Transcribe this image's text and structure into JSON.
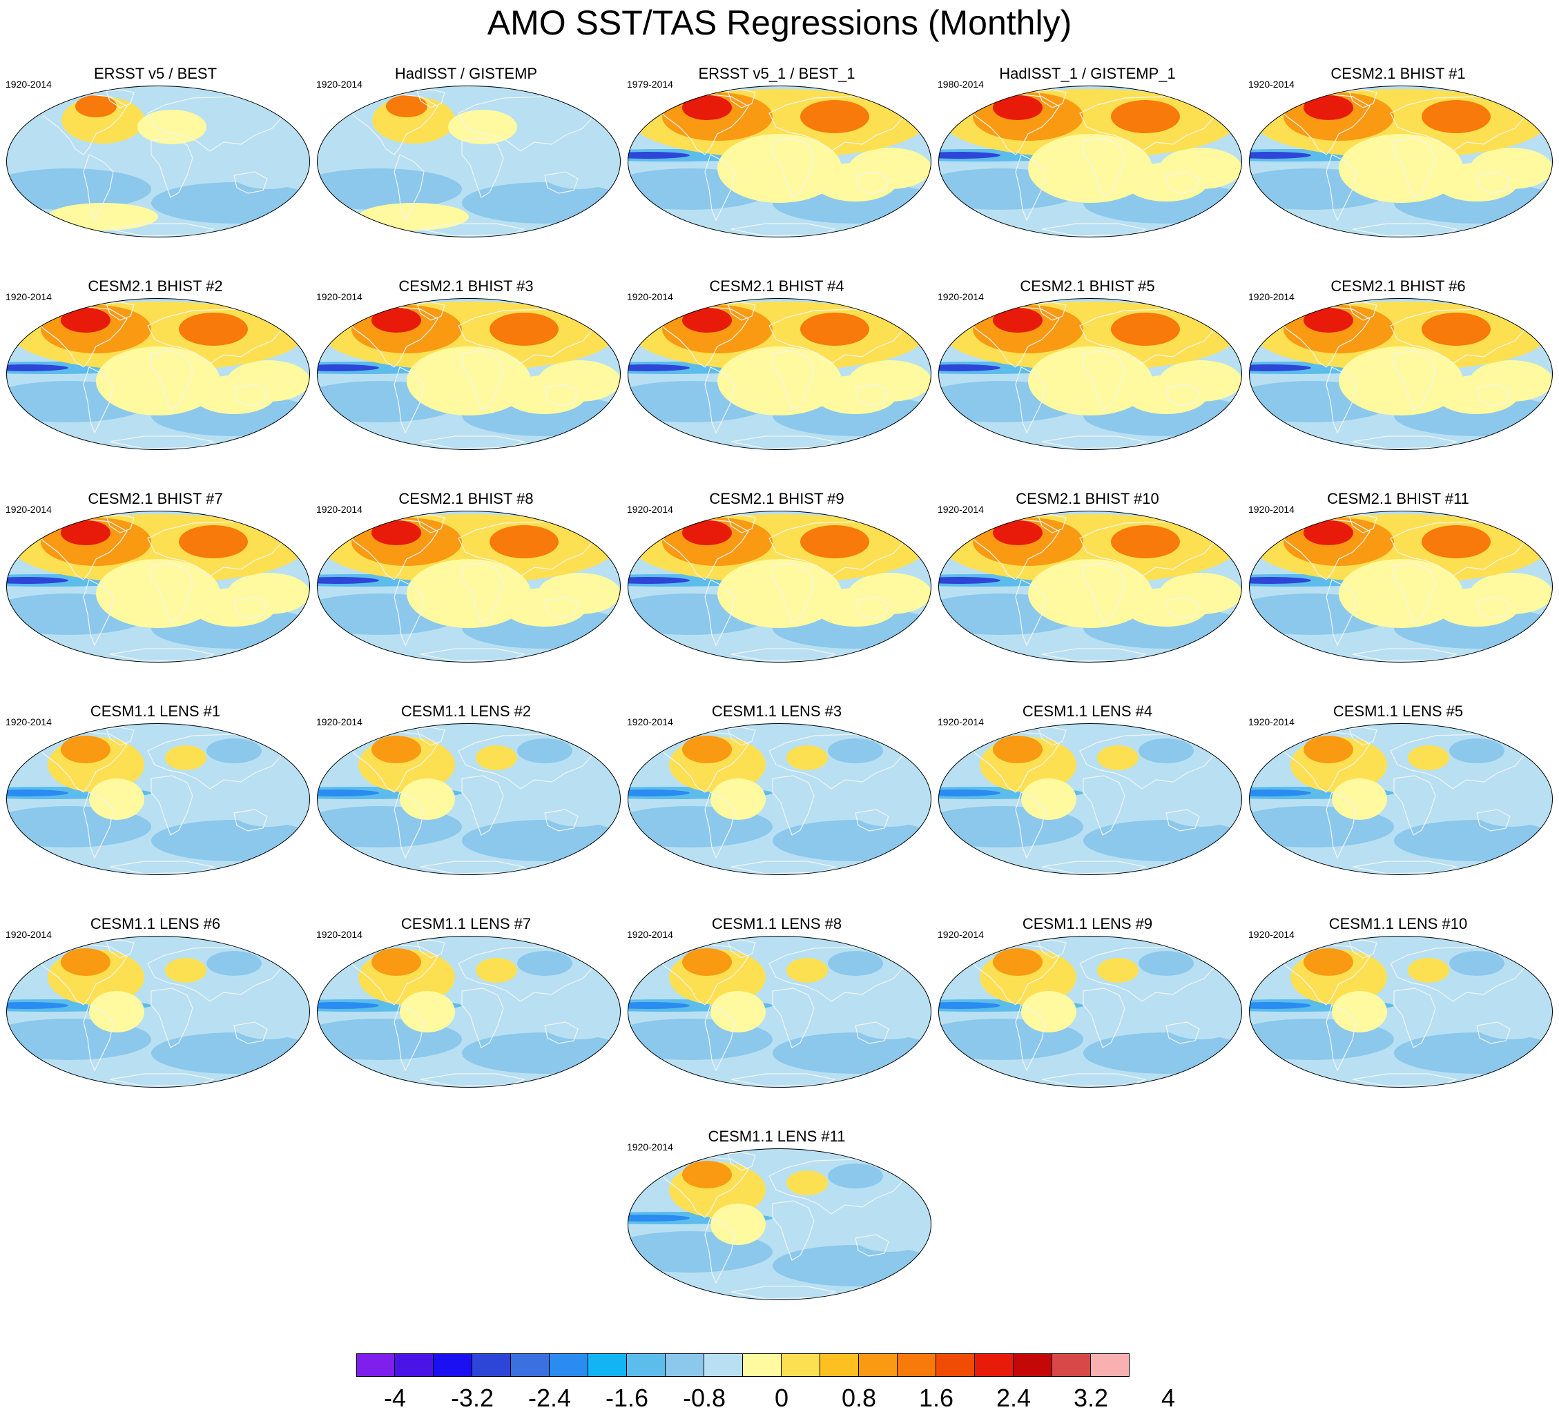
{
  "title": "AMO SST/TAS Regressions (Monthly)",
  "panels": [
    {
      "title": "ERSST v5 / BEST",
      "period": "1920-2014",
      "kind": "obs1"
    },
    {
      "title": "HadISST / GISTEMP",
      "period": "1920-2014",
      "kind": "obs2"
    },
    {
      "title": "ERSST v5_1 / BEST_1",
      "period": "1979-2014",
      "kind": "obs3"
    },
    {
      "title": "HadISST_1 / GISTEMP_1",
      "period": "1980-2014",
      "kind": "obs3"
    },
    {
      "title": "CESM2.1 BHIST #1",
      "period": "1920-2014",
      "kind": "bhist"
    },
    {
      "title": "CESM2.1 BHIST #2",
      "period": "1920-2014",
      "kind": "bhist"
    },
    {
      "title": "CESM2.1 BHIST #3",
      "period": "1920-2014",
      "kind": "bhist"
    },
    {
      "title": "CESM2.1 BHIST #4",
      "period": "1920-2014",
      "kind": "bhist"
    },
    {
      "title": "CESM2.1 BHIST #5",
      "period": "1920-2014",
      "kind": "bhist"
    },
    {
      "title": "CESM2.1 BHIST #6",
      "period": "1920-2014",
      "kind": "bhist"
    },
    {
      "title": "CESM2.1 BHIST #7",
      "period": "1920-2014",
      "kind": "bhist"
    },
    {
      "title": "CESM2.1 BHIST #8",
      "period": "1920-2014",
      "kind": "bhist"
    },
    {
      "title": "CESM2.1 BHIST #9",
      "period": "1920-2014",
      "kind": "bhist"
    },
    {
      "title": "CESM2.1 BHIST #10",
      "period": "1920-2014",
      "kind": "bhist"
    },
    {
      "title": "CESM2.1 BHIST #11",
      "period": "1920-2014",
      "kind": "bhist"
    },
    {
      "title": "CESM1.1 LENS #1",
      "period": "1920-2014",
      "kind": "lens"
    },
    {
      "title": "CESM1.1 LENS #2",
      "period": "1920-2014",
      "kind": "lens"
    },
    {
      "title": "CESM1.1 LENS #3",
      "period": "1920-2014",
      "kind": "lens"
    },
    {
      "title": "CESM1.1 LENS #4",
      "period": "1920-2014",
      "kind": "lens"
    },
    {
      "title": "CESM1.1 LENS #5",
      "period": "1920-2014",
      "kind": "lens"
    },
    {
      "title": "CESM1.1 LENS #6",
      "period": "1920-2014",
      "kind": "lens"
    },
    {
      "title": "CESM1.1 LENS #7",
      "period": "1920-2014",
      "kind": "lens"
    },
    {
      "title": "CESM1.1 LENS #8",
      "period": "1920-2014",
      "kind": "lens"
    },
    {
      "title": "CESM1.1 LENS #9",
      "period": "1920-2014",
      "kind": "lens"
    },
    {
      "title": "CESM1.1 LENS #10",
      "period": "1920-2014",
      "kind": "lens"
    },
    {
      "title": "CESM1.1 LENS #11",
      "period": "1920-2014",
      "kind": "lens"
    }
  ],
  "colorbar": {
    "colors": [
      "#7e1fee",
      "#4a14e8",
      "#1a10f2",
      "#2e46d8",
      "#3a70e0",
      "#2a8cf0",
      "#12b4f4",
      "#5cbcec",
      "#8cc8ec",
      "#b8e0f2",
      "#fffaa0",
      "#fde052",
      "#fcc020",
      "#f99a12",
      "#f77a0a",
      "#f04c06",
      "#e81a0a",
      "#c40808",
      "#d84848",
      "#f8b0b0"
    ],
    "ticks": [
      "-4",
      "-3.2",
      "-2.4",
      "-1.6",
      "-0.8",
      "0",
      "0.8",
      "1.6",
      "2.4",
      "3.2",
      "4"
    ]
  }
}
